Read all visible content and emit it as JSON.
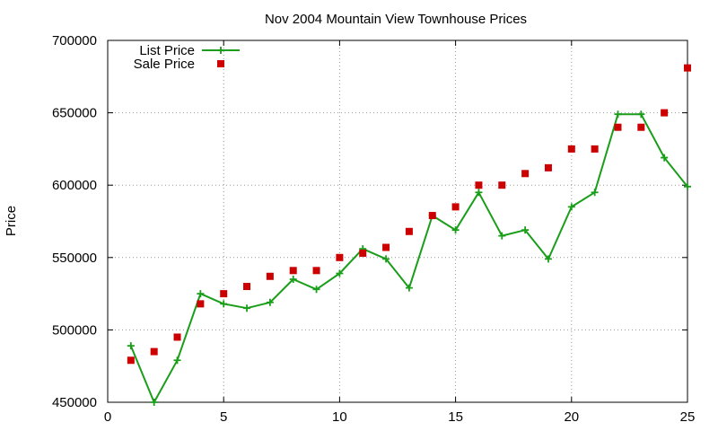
{
  "chart_data": {
    "type": "line",
    "title": "Nov 2004 Mountain View Townhouse Prices",
    "xlabel": "",
    "ylabel": "Price",
    "xlim": [
      0,
      25
    ],
    "ylim": [
      450000,
      700000
    ],
    "xticks": [
      0,
      5,
      10,
      15,
      20,
      25
    ],
    "yticks": [
      450000,
      500000,
      550000,
      600000,
      650000,
      700000
    ],
    "grid": true,
    "legend_position": "top-left",
    "series": [
      {
        "name": "List Price",
        "style": "lines+points",
        "color": "#1a9e1a",
        "x": [
          1,
          2,
          3,
          4,
          5,
          6,
          7,
          8,
          9,
          10,
          11,
          12,
          13,
          14,
          15,
          16,
          17,
          18,
          19,
          20,
          21,
          22,
          23,
          24,
          25
        ],
        "y": [
          489000,
          450000,
          479000,
          525000,
          518000,
          515000,
          519000,
          535000,
          528000,
          539000,
          556000,
          549000,
          529000,
          579000,
          569000,
          595000,
          565000,
          569000,
          549000,
          585000,
          595000,
          649000,
          649000,
          619000,
          599000
        ]
      },
      {
        "name": "Sale Price",
        "style": "points",
        "color": "#cc0000",
        "x": [
          1,
          2,
          3,
          4,
          5,
          6,
          7,
          8,
          9,
          10,
          11,
          12,
          13,
          14,
          15,
          16,
          17,
          18,
          19,
          20,
          21,
          22,
          23,
          24,
          25
        ],
        "y": [
          479000,
          485000,
          495000,
          518000,
          525000,
          530000,
          537000,
          541000,
          541000,
          550000,
          553000,
          557000,
          568000,
          579000,
          585000,
          600000,
          600000,
          608000,
          612000,
          625000,
          625000,
          640000,
          640000,
          650000,
          681000
        ]
      }
    ]
  }
}
